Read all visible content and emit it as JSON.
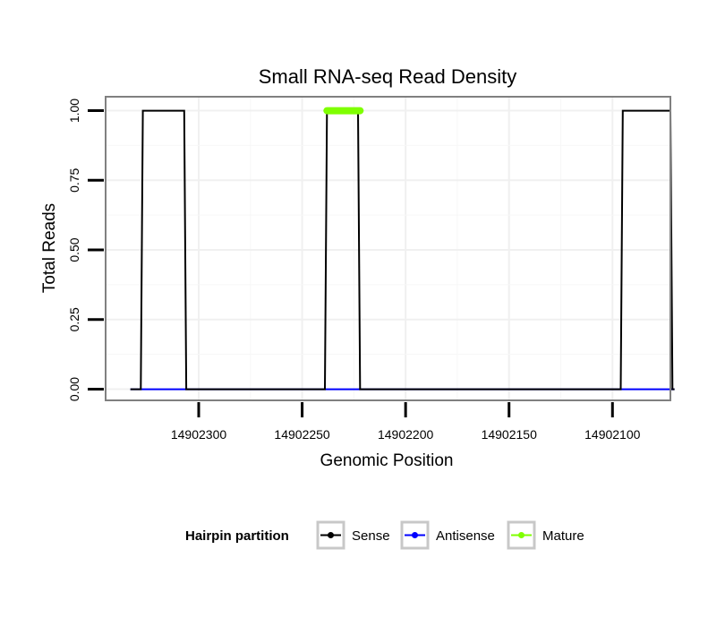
{
  "chart_data": {
    "type": "line",
    "title": "Small RNA-seq Read Density",
    "xlabel": "Genomic Position",
    "ylabel": "Total Reads",
    "x_reversed": true,
    "xlim": [
      14902072,
      14902345
    ],
    "ylim": [
      -0.04,
      1.05
    ],
    "x_ticks": [
      14902300,
      14902250,
      14902200,
      14902150,
      14902100
    ],
    "x_tick_labels": [
      "14902300",
      "14902250",
      "14902200",
      "14902150",
      "14902100"
    ],
    "y_ticks": [
      0,
      0.25,
      0.5,
      0.75,
      1
    ],
    "y_tick_labels": [
      "0.00",
      "0.25",
      "0.50",
      "0.75",
      "1.00"
    ],
    "grid": true,
    "legend": {
      "title": "Hairpin partition",
      "position": "bottom",
      "entries": [
        {
          "name": "Sense",
          "color": "#000000"
        },
        {
          "name": "Antisense",
          "color": "#0000ff"
        },
        {
          "name": "Mature",
          "color": "#7fff00"
        }
      ]
    },
    "series": [
      {
        "name": "Sense",
        "color": "#000000",
        "x": [
          14902333,
          14902328,
          14902327,
          14902307,
          14902306,
          14902239,
          14902238,
          14902223,
          14902222,
          14902096,
          14902095,
          14902072,
          14902071,
          14902070
        ],
        "y": [
          0,
          0,
          1,
          1,
          0,
          0,
          1,
          1,
          0,
          0,
          1,
          1,
          0,
          0
        ]
      },
      {
        "name": "Antisense",
        "color": "#0000ff",
        "x": [
          14902333,
          14902070
        ],
        "y": [
          0,
          0
        ]
      },
      {
        "name": "Mature",
        "color": "#7fff00",
        "x": [
          14902238,
          14902222
        ],
        "y": [
          1,
          1
        ]
      }
    ]
  }
}
